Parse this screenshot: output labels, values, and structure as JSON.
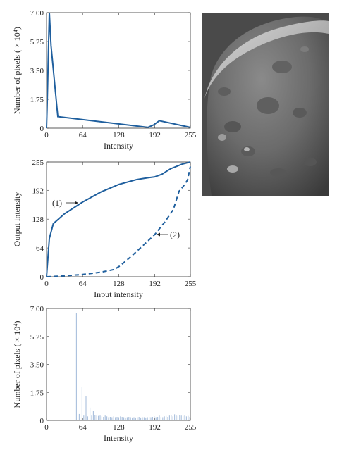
{
  "colors": {
    "curve": "#1f5f9e",
    "hist_bar": "#a9bfdc",
    "axis": "#333333",
    "photo_bg": "#4a4a4a"
  },
  "image_panel": {
    "description_icon": "moon-surface-photo"
  },
  "chart_data": [
    {
      "type": "line",
      "xlabel": "Intensity",
      "ylabel": "Number of pixels ( × 10⁴)",
      "xlim": [
        0,
        255
      ],
      "ylim": [
        0,
        7.0
      ],
      "xticks": [
        "0",
        "64",
        "128",
        "192",
        "255"
      ],
      "yticks": [
        "0",
        "1.75",
        "3.50",
        "5.25",
        "7.00"
      ],
      "grid": false,
      "series": [
        {
          "x": [
            0,
            1,
            4,
            5,
            8,
            20,
            180,
            190,
            200,
            255
          ],
          "y": [
            0.0,
            1.2,
            5.6,
            7.0,
            5.0,
            0.7,
            0.05,
            0.2,
            0.45,
            0.05
          ]
        }
      ]
    },
    {
      "type": "line",
      "xlabel": "Input intensity",
      "ylabel": "Output intensity",
      "xlim": [
        0,
        255
      ],
      "ylim": [
        0,
        255
      ],
      "xticks": [
        "0",
        "64",
        "128",
        "192",
        "255"
      ],
      "yticks": [
        "0",
        "64",
        "128",
        "192",
        "255"
      ],
      "grid": false,
      "annotations": [
        "(1)",
        "(2)"
      ],
      "series": [
        {
          "style": "solid",
          "x": [
            0,
            5,
            12,
            32,
            64,
            96,
            128,
            160,
            180,
            192,
            205,
            220,
            240,
            255
          ],
          "y": [
            0,
            85,
            118,
            140,
            166,
            188,
            205,
            216,
            220,
            222,
            228,
            240,
            250,
            255
          ]
        },
        {
          "style": "dashed",
          "x": [
            0,
            32,
            64,
            96,
            120,
            130,
            150,
            170,
            192,
            210,
            225,
            235,
            242,
            250,
            255
          ],
          "y": [
            0,
            2,
            5,
            10,
            16,
            24,
            45,
            68,
            94,
            122,
            150,
            190,
            200,
            215,
            245
          ]
        }
      ]
    },
    {
      "type": "bar",
      "xlabel": "Intensity",
      "ylabel": "Number of pixels ( × 10⁴)",
      "xlim": [
        0,
        255
      ],
      "ylim": [
        0,
        7.0
      ],
      "xticks": [
        "0",
        "64",
        "128",
        "192",
        "255"
      ],
      "yticks": [
        "0",
        "1.75",
        "3.50",
        "5.25",
        "7.00"
      ],
      "grid": false,
      "bars": {
        "x": [
          53,
          58,
          63,
          66,
          70,
          73,
          77,
          80,
          83,
          86,
          89,
          92,
          95,
          98,
          101,
          104,
          107,
          110,
          113,
          116,
          119,
          122,
          125,
          128,
          131,
          134,
          137,
          140,
          143,
          146,
          149,
          152,
          155,
          158,
          161,
          164,
          167,
          170,
          173,
          176,
          179,
          182,
          185,
          188,
          191,
          194,
          197,
          200,
          203,
          206,
          209,
          212,
          215,
          218,
          221,
          224,
          227,
          230,
          233,
          236,
          239,
          242,
          245,
          248,
          251,
          254
        ],
        "y": [
          6.7,
          0.4,
          2.1,
          0.3,
          1.5,
          0.25,
          0.8,
          0.3,
          0.6,
          0.35,
          0.3,
          0.28,
          0.3,
          0.25,
          0.22,
          0.3,
          0.25,
          0.2,
          0.22,
          0.2,
          0.25,
          0.2,
          0.22,
          0.2,
          0.25,
          0.22,
          0.2,
          0.18,
          0.2,
          0.22,
          0.2,
          0.18,
          0.2,
          0.18,
          0.2,
          0.22,
          0.18,
          0.2,
          0.2,
          0.18,
          0.2,
          0.22,
          0.2,
          0.22,
          0.25,
          0.2,
          0.22,
          0.3,
          0.22,
          0.2,
          0.25,
          0.28,
          0.22,
          0.3,
          0.35,
          0.25,
          0.38,
          0.3,
          0.28,
          0.35,
          0.3,
          0.28,
          0.3,
          0.25,
          0.28,
          0.22
        ]
      }
    }
  ]
}
